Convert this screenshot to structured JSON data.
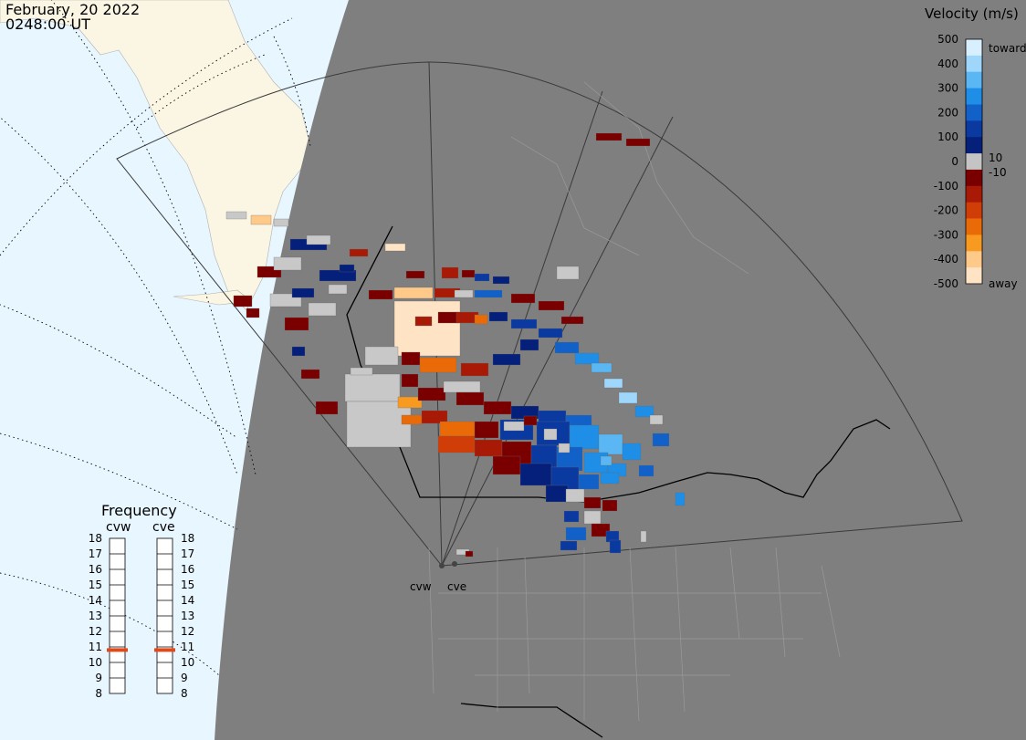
{
  "header": {
    "date": "February, 20 2022",
    "time": "0248:00 UT"
  },
  "colorbar": {
    "title": "Velocity (m/s)",
    "ticks": [
      "500",
      "400",
      "300",
      "200",
      "100",
      "0",
      "-100",
      "-200",
      "-300",
      "-400",
      "-500"
    ],
    "toward_label": "toward",
    "away_label": "away",
    "pos_threshold": "10",
    "neg_threshold": "-10",
    "colors": [
      "#d8efff",
      "#9fd6fb",
      "#5ab7f4",
      "#1f8ee6",
      "#1261c9",
      "#0a3aa0",
      "#05207a",
      "#c4c4c4",
      "#7a0000",
      "#a81a06",
      "#d13d07",
      "#ea6a08",
      "#f99a20",
      "#ffc98a",
      "#ffe3c5"
    ]
  },
  "frequency": {
    "title": "Frequency",
    "radars": [
      "cvw",
      "cve"
    ],
    "levels": [
      "18",
      "17",
      "16",
      "15",
      "14",
      "13",
      "12",
      "11",
      "10",
      "9",
      "8"
    ],
    "current": [
      10.8,
      10.8
    ],
    "marker_color": "#e04a1b"
  },
  "stations": {
    "labels": [
      "cvw",
      "cve"
    ]
  },
  "map_colors": {
    "ocean": "#e8f6ff",
    "land_day": "#fbf6e3",
    "night": "#7f7f7f",
    "ground_scatter": "#c8c8c8"
  }
}
